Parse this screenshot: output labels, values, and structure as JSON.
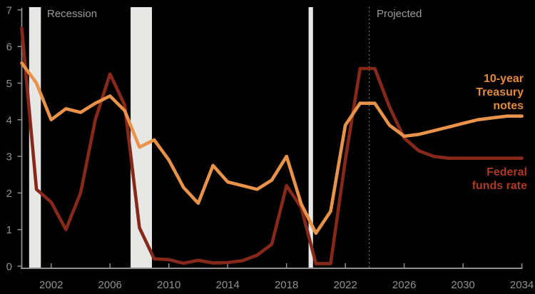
{
  "chart_data": {
    "type": "line",
    "x": [
      2000,
      2001,
      2002,
      2003,
      2004,
      2005,
      2006,
      2007,
      2008,
      2009,
      2010,
      2011,
      2012,
      2013,
      2014,
      2015,
      2016,
      2017,
      2018,
      2019,
      2020,
      2021,
      2022,
      2023,
      2024,
      2025,
      2026,
      2027,
      2028,
      2029,
      2030,
      2031,
      2032,
      2033,
      2034
    ],
    "series": [
      {
        "name": "10-year Treasury notes",
        "label_lines": [
          "10-year",
          "Treasury",
          "notes"
        ],
        "color": "#e8924a",
        "label_color": "#e18b3e",
        "values": [
          5.55,
          5.0,
          4.0,
          4.3,
          4.2,
          4.45,
          4.65,
          4.25,
          3.25,
          3.45,
          2.9,
          2.15,
          1.72,
          2.75,
          2.3,
          2.2,
          2.1,
          2.35,
          3.0,
          1.7,
          0.9,
          1.5,
          3.85,
          4.45,
          4.45,
          3.85,
          3.55,
          3.6,
          3.7,
          3.8,
          3.9,
          4.0,
          4.05,
          4.1,
          4.1
        ]
      },
      {
        "name": "Federal funds rate",
        "label_lines": [
          "Federal",
          "funds rate"
        ],
        "color": "#87291a",
        "label_color": "#ab3a22",
        "values": [
          6.5,
          2.1,
          1.75,
          1.0,
          2.0,
          4.0,
          5.25,
          4.4,
          1.05,
          0.2,
          0.18,
          0.08,
          0.16,
          0.09,
          0.1,
          0.15,
          0.3,
          0.6,
          2.2,
          1.6,
          0.07,
          0.07,
          2.9,
          5.4,
          5.4,
          4.35,
          3.5,
          3.15,
          3.0,
          2.95,
          2.95,
          2.95,
          2.95,
          2.95,
          2.95
        ]
      }
    ],
    "title": "",
    "xlabel": "",
    "ylabel": "",
    "xlim": [
      2000,
      2034
    ],
    "ylim": [
      0,
      7
    ],
    "grid": false,
    "y_ticks": [
      0,
      1,
      2,
      3,
      4,
      5,
      6,
      7
    ],
    "x_ticks": [
      2002,
      2006,
      2010,
      2014,
      2018,
      2022,
      2026,
      2030,
      2034
    ],
    "recession_bands": [
      {
        "x0": 2000.5,
        "x1": 2001.3
      },
      {
        "x0": 2007.4,
        "x1": 2008.85
      },
      {
        "x0": 2019.5,
        "x1": 2019.8
      }
    ],
    "projected_line_x": 2023.62,
    "annotations": {
      "recession": "Recession",
      "projected": "Projected"
    },
    "colors": {
      "background": "#000000",
      "recession_band": "#e7e7e5",
      "axis": "#8f8f8f",
      "tick_label": "#919191",
      "annotation_text": "#9a9a9a",
      "projected_divider": "#8a8a8a"
    }
  }
}
